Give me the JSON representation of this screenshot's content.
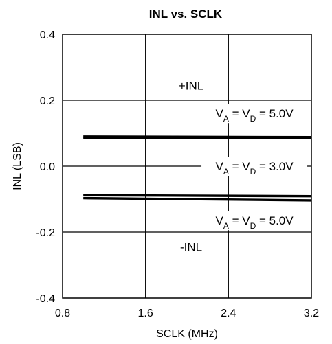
{
  "chart_data": {
    "type": "line",
    "title": "INL vs. SCLK",
    "xlabel": "SCLK (MHz)",
    "ylabel": "INL (LSB)",
    "xlim": [
      0.8,
      3.2
    ],
    "ylim": [
      -0.4,
      0.4
    ],
    "x_ticks": [
      "0.8",
      "1.6",
      "2.4",
      "3.2"
    ],
    "x_tick_values": [
      0.8,
      1.6,
      2.4,
      3.2
    ],
    "y_ticks": [
      "0.4",
      "0.2",
      "0.0",
      "-0.2",
      "-0.4"
    ],
    "y_tick_values": [
      0.4,
      0.2,
      0.0,
      -0.2,
      -0.4
    ],
    "grid": true,
    "series": [
      {
        "x": [
          1.0,
          3.2
        ],
        "y": [
          0.09,
          0.088
        ]
      },
      {
        "x": [
          1.0,
          3.2
        ],
        "y": [
          0.085,
          0.085
        ]
      },
      {
        "x": [
          1.0,
          3.2
        ],
        "y": [
          -0.088,
          -0.091
        ]
      },
      {
        "x": [
          1.0,
          3.2
        ],
        "y": [
          -0.097,
          -0.104
        ]
      }
    ],
    "annotations": [
      {
        "id": "pos-inl",
        "text": "+INL",
        "x": 2.04,
        "y": 0.245
      },
      {
        "id": "va5-top",
        "text": "V",
        "sub1": "A",
        "mid": " = V",
        "sub2": "D",
        "end": " = 5.0V",
        "x": 2.65,
        "y": 0.16
      },
      {
        "id": "va3",
        "text": "V",
        "sub1": "A",
        "mid": " = V",
        "sub2": "D",
        "end": " = 3.0V",
        "x": 2.65,
        "y": 0.0
      },
      {
        "id": "va5-bot",
        "text": "V",
        "sub1": "A",
        "mid": " = V",
        "sub2": "D",
        "end": " = 5.0V",
        "x": 2.65,
        "y": -0.165
      },
      {
        "id": "neg-inl",
        "text": "-INL",
        "x": 2.04,
        "y": -0.245
      }
    ]
  }
}
